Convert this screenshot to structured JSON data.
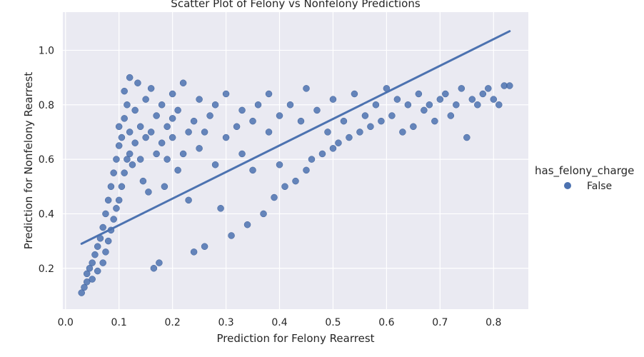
{
  "chart_data": {
    "type": "scatter",
    "title": "Scatter Plot of Felony vs Nonfelony Predictions",
    "xlabel": "Prediction for Felony Rearrest",
    "ylabel": "Prediction for Nonfelony Rearrest",
    "xlim": [
      -0.005,
      0.865
    ],
    "ylim": [
      0.05,
      1.14
    ],
    "xticks": [
      0.0,
      0.1,
      0.2,
      0.3,
      0.4,
      0.5,
      0.6,
      0.7,
      0.8
    ],
    "xtick_labels": [
      "0.0",
      "0.1",
      "0.2",
      "0.3",
      "0.4",
      "0.5",
      "0.6",
      "0.7",
      "0.8"
    ],
    "yticks": [
      0.2,
      0.4,
      0.6,
      0.8,
      1.0
    ],
    "ytick_labels": [
      "0.2",
      "0.4",
      "0.6",
      "0.8",
      "1.0"
    ],
    "grid": true,
    "legend": {
      "title": "has_felony_charge",
      "placement": "right",
      "entries": [
        {
          "label": "False",
          "color": "#4c72b0"
        }
      ]
    },
    "style": {
      "background": "#eaeaf2",
      "grid_color": "#ffffff",
      "point_color": "#4c72b0",
      "line_color": "#4c72b0"
    },
    "regression_line": {
      "x": [
        0.03,
        0.83
      ],
      "y": [
        0.29,
        1.07
      ]
    },
    "series": [
      {
        "name": "False",
        "points": [
          [
            0.03,
            0.11
          ],
          [
            0.035,
            0.13
          ],
          [
            0.04,
            0.15
          ],
          [
            0.04,
            0.18
          ],
          [
            0.045,
            0.2
          ],
          [
            0.05,
            0.16
          ],
          [
            0.05,
            0.22
          ],
          [
            0.055,
            0.25
          ],
          [
            0.06,
            0.19
          ],
          [
            0.06,
            0.28
          ],
          [
            0.065,
            0.31
          ],
          [
            0.07,
            0.22
          ],
          [
            0.07,
            0.35
          ],
          [
            0.075,
            0.26
          ],
          [
            0.075,
            0.4
          ],
          [
            0.08,
            0.3
          ],
          [
            0.08,
            0.45
          ],
          [
            0.085,
            0.34
          ],
          [
            0.085,
            0.5
          ],
          [
            0.09,
            0.38
          ],
          [
            0.09,
            0.55
          ],
          [
            0.095,
            0.42
          ],
          [
            0.095,
            0.6
          ],
          [
            0.1,
            0.45
          ],
          [
            0.1,
            0.65
          ],
          [
            0.1,
            0.72
          ],
          [
            0.105,
            0.5
          ],
          [
            0.105,
            0.68
          ],
          [
            0.11,
            0.55
          ],
          [
            0.11,
            0.75
          ],
          [
            0.11,
            0.85
          ],
          [
            0.115,
            0.6
          ],
          [
            0.115,
            0.8
          ],
          [
            0.12,
            0.62
          ],
          [
            0.12,
            0.7
          ],
          [
            0.12,
            0.9
          ],
          [
            0.125,
            0.58
          ],
          [
            0.13,
            0.66
          ],
          [
            0.13,
            0.78
          ],
          [
            0.135,
            0.88
          ],
          [
            0.14,
            0.6
          ],
          [
            0.14,
            0.72
          ],
          [
            0.145,
            0.52
          ],
          [
            0.15,
            0.68
          ],
          [
            0.15,
            0.82
          ],
          [
            0.155,
            0.48
          ],
          [
            0.16,
            0.7
          ],
          [
            0.16,
            0.86
          ],
          [
            0.165,
            0.2
          ],
          [
            0.17,
            0.62
          ],
          [
            0.17,
            0.76
          ],
          [
            0.175,
            0.22
          ],
          [
            0.18,
            0.66
          ],
          [
            0.18,
            0.8
          ],
          [
            0.185,
            0.5
          ],
          [
            0.19,
            0.72
          ],
          [
            0.19,
            0.6
          ],
          [
            0.2,
            0.84
          ],
          [
            0.2,
            0.68
          ],
          [
            0.2,
            0.75
          ],
          [
            0.21,
            0.56
          ],
          [
            0.21,
            0.78
          ],
          [
            0.22,
            0.62
          ],
          [
            0.22,
            0.88
          ],
          [
            0.23,
            0.7
          ],
          [
            0.23,
            0.45
          ],
          [
            0.24,
            0.26
          ],
          [
            0.24,
            0.74
          ],
          [
            0.25,
            0.82
          ],
          [
            0.25,
            0.64
          ],
          [
            0.26,
            0.28
          ],
          [
            0.26,
            0.7
          ],
          [
            0.27,
            0.76
          ],
          [
            0.28,
            0.58
          ],
          [
            0.28,
            0.8
          ],
          [
            0.29,
            0.42
          ],
          [
            0.3,
            0.68
          ],
          [
            0.3,
            0.84
          ],
          [
            0.31,
            0.32
          ],
          [
            0.32,
            0.72
          ],
          [
            0.33,
            0.62
          ],
          [
            0.33,
            0.78
          ],
          [
            0.34,
            0.36
          ],
          [
            0.35,
            0.74
          ],
          [
            0.35,
            0.56
          ],
          [
            0.36,
            0.8
          ],
          [
            0.37,
            0.4
          ],
          [
            0.38,
            0.7
          ],
          [
            0.38,
            0.84
          ],
          [
            0.39,
            0.46
          ],
          [
            0.4,
            0.76
          ],
          [
            0.4,
            0.58
          ],
          [
            0.41,
            0.5
          ],
          [
            0.42,
            0.8
          ],
          [
            0.43,
            0.52
          ],
          [
            0.44,
            0.74
          ],
          [
            0.45,
            0.56
          ],
          [
            0.45,
            0.86
          ],
          [
            0.46,
            0.6
          ],
          [
            0.47,
            0.78
          ],
          [
            0.48,
            0.62
          ],
          [
            0.49,
            0.7
          ],
          [
            0.5,
            0.64
          ],
          [
            0.5,
            0.82
          ],
          [
            0.51,
            0.66
          ],
          [
            0.52,
            0.74
          ],
          [
            0.53,
            0.68
          ],
          [
            0.54,
            0.84
          ],
          [
            0.55,
            0.7
          ],
          [
            0.56,
            0.76
          ],
          [
            0.57,
            0.72
          ],
          [
            0.58,
            0.8
          ],
          [
            0.59,
            0.74
          ],
          [
            0.6,
            0.86
          ],
          [
            0.61,
            0.76
          ],
          [
            0.62,
            0.82
          ],
          [
            0.63,
            0.7
          ],
          [
            0.64,
            0.8
          ],
          [
            0.65,
            0.72
          ],
          [
            0.66,
            0.84
          ],
          [
            0.67,
            0.78
          ],
          [
            0.68,
            0.8
          ],
          [
            0.69,
            0.74
          ],
          [
            0.7,
            0.82
          ],
          [
            0.71,
            0.84
          ],
          [
            0.72,
            0.76
          ],
          [
            0.73,
            0.8
          ],
          [
            0.74,
            0.86
          ],
          [
            0.75,
            0.68
          ],
          [
            0.76,
            0.82
          ],
          [
            0.77,
            0.8
          ],
          [
            0.78,
            0.84
          ],
          [
            0.79,
            0.86
          ],
          [
            0.8,
            0.82
          ],
          [
            0.81,
            0.8
          ],
          [
            0.82,
            0.87
          ],
          [
            0.83,
            0.87
          ]
        ]
      }
    ]
  }
}
